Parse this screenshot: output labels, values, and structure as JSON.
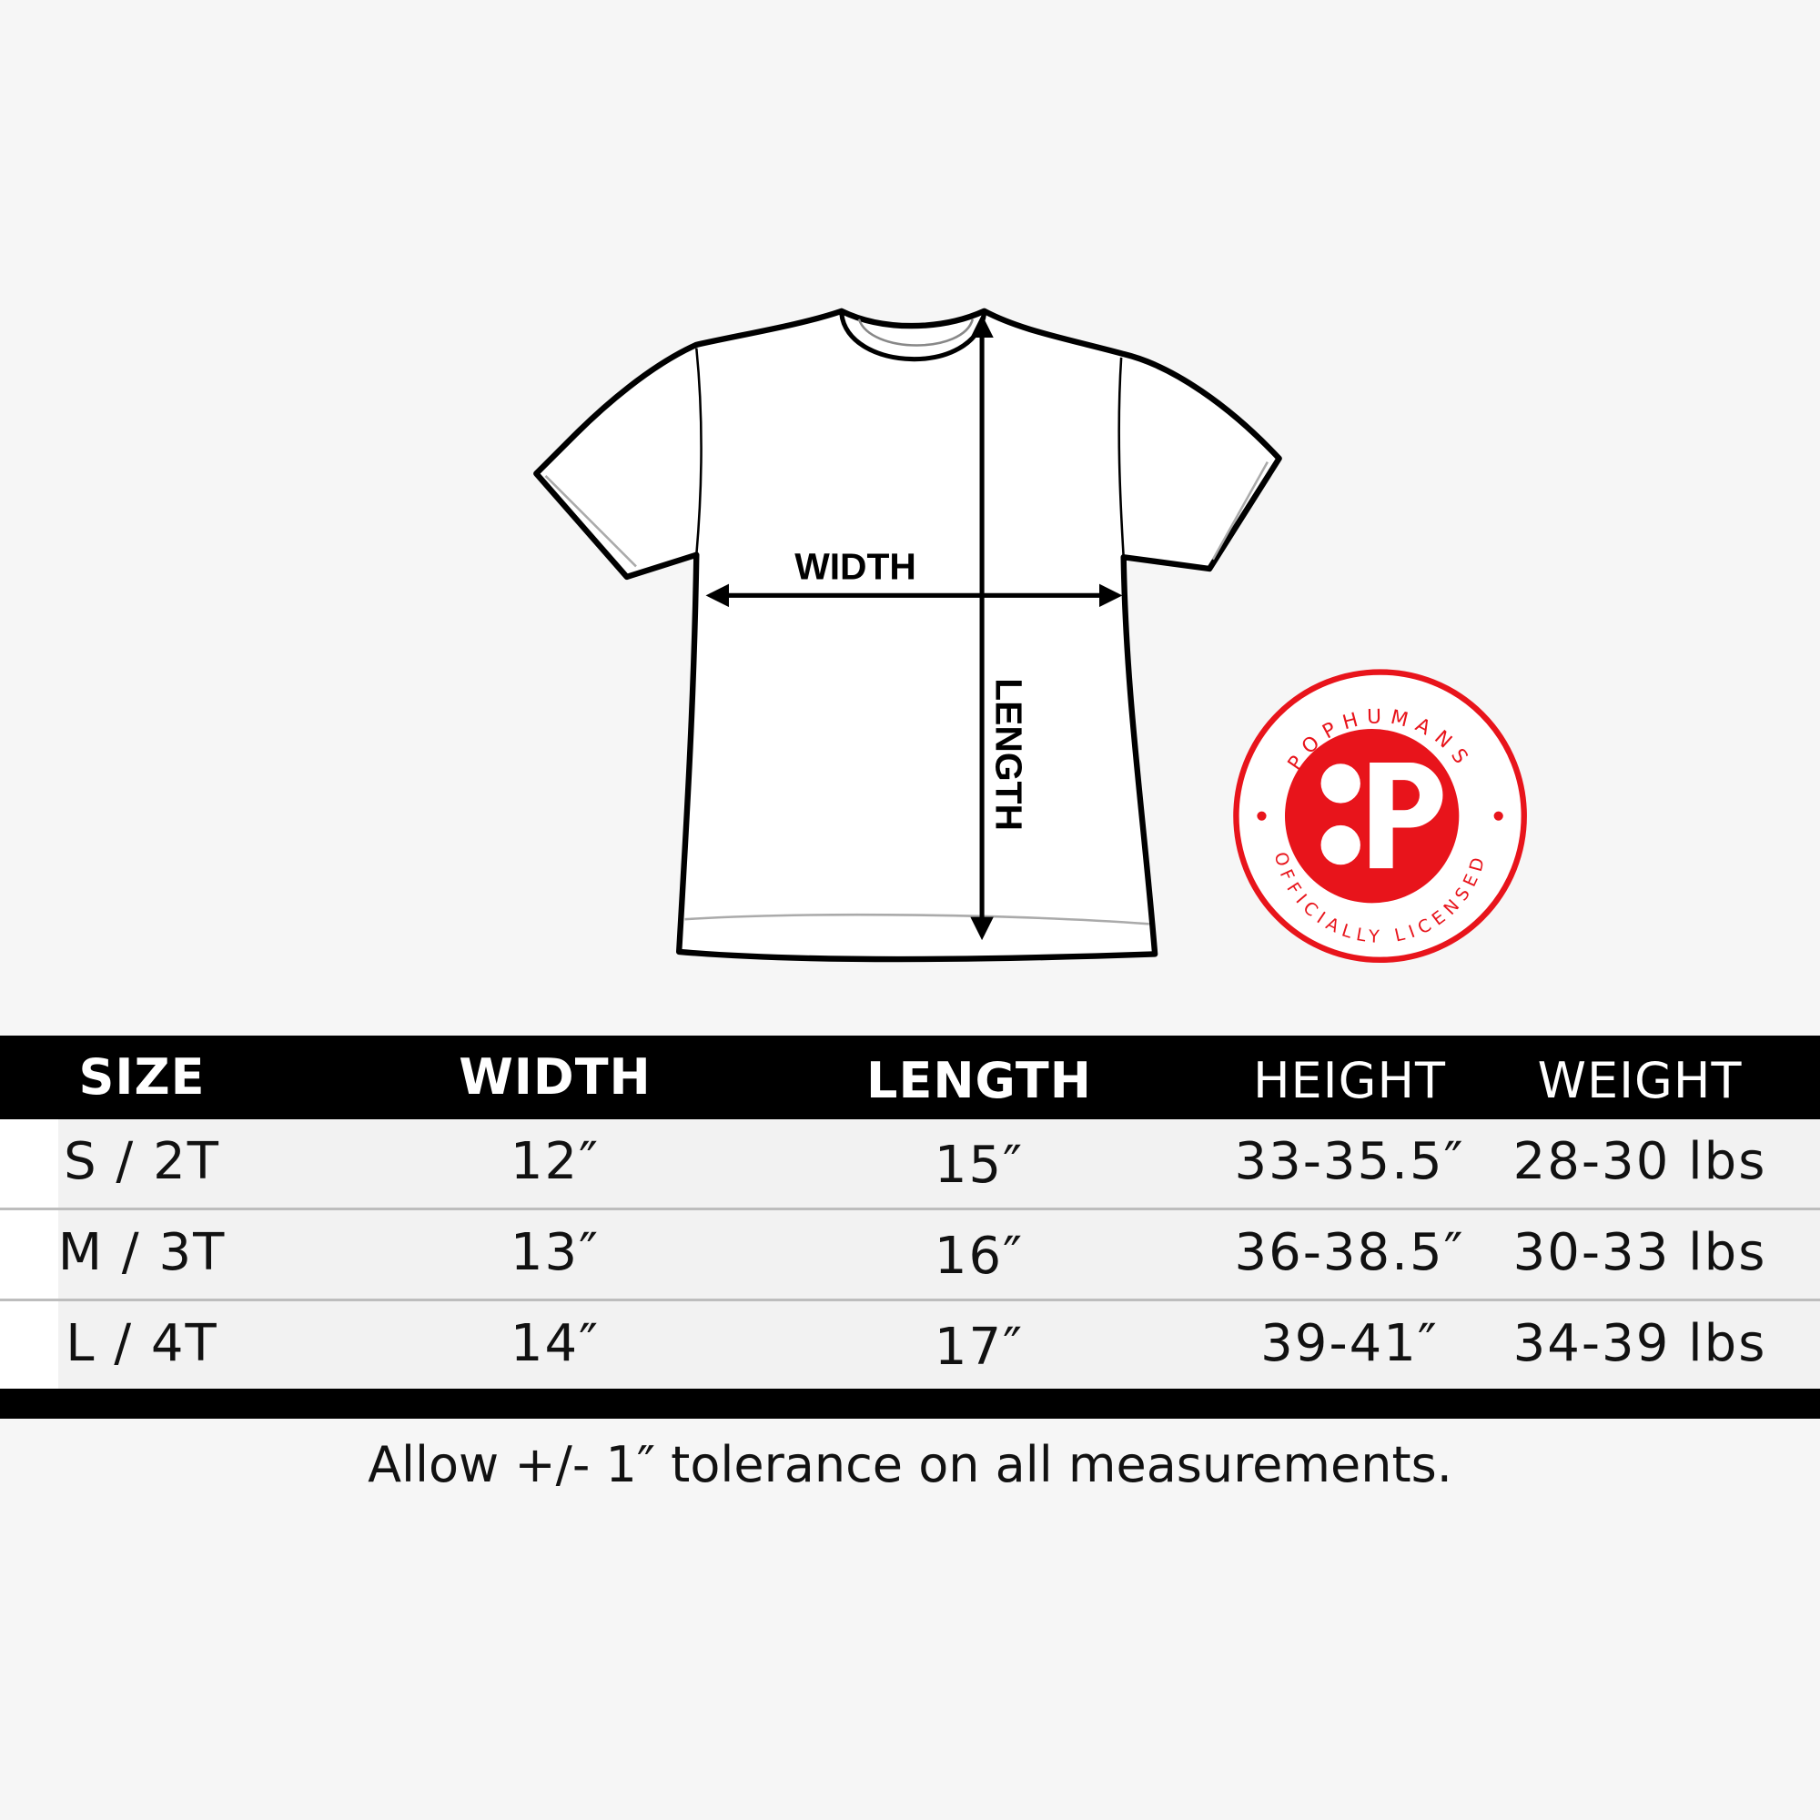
{
  "diagram": {
    "width_label": "WIDTH",
    "length_label": "LENGTH"
  },
  "logo": {
    "brand": "POPHUMANS",
    "tagline": "OFFICIALLY LICENSED",
    "color": "#e8141b"
  },
  "table": {
    "headers": [
      "SIZE",
      "WIDTH",
      "LENGTH",
      "HEIGHT",
      "WEIGHT"
    ],
    "rows": [
      [
        "S / 2T",
        "12″",
        "15″",
        "33-35.5″",
        "28-30 lbs"
      ],
      [
        "M / 3T",
        "13″",
        "16″",
        "36-38.5″",
        "30-33 lbs"
      ],
      [
        "L / 4T",
        "14″",
        "17″",
        "39-41″",
        "34-39 lbs"
      ]
    ]
  },
  "note": "Allow +/- 1″ tolerance on all measurements."
}
